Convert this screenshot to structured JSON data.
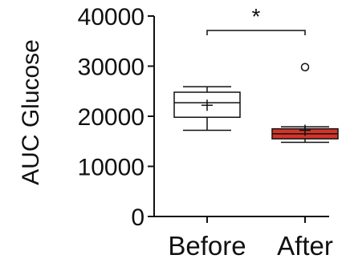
{
  "chart_data": {
    "type": "box",
    "ylabel": "AUC Glucose",
    "ylim": [
      0,
      40000
    ],
    "yticks": [
      0,
      10000,
      20000,
      30000,
      40000
    ],
    "yticklabels": [
      "0",
      "10000",
      "20000",
      "30000",
      "40000"
    ],
    "categories": [
      "Before",
      "After"
    ],
    "boxes": [
      {
        "category": "Before",
        "whisker_low": 17200,
        "q1": 19800,
        "median": 22700,
        "q3": 24800,
        "whisker_high": 25900,
        "mean": 22200,
        "outliers": [],
        "fill": "#ffffff"
      },
      {
        "category": "After",
        "whisker_low": 14800,
        "q1": 15500,
        "median": 16500,
        "q3": 17500,
        "whisker_high": 17900,
        "mean": 17200,
        "outliers": [
          29800
        ],
        "fill": "#d2342b"
      }
    ],
    "significance": {
      "between": [
        "Before",
        "After"
      ],
      "label": "*"
    }
  }
}
